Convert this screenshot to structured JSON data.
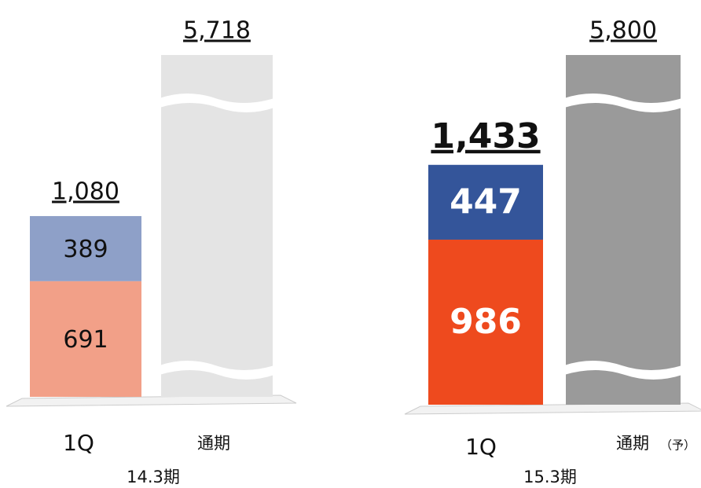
{
  "chart_data": [
    {
      "type": "bar",
      "period": "14.3期",
      "categories": [
        "1Q",
        "通期"
      ],
      "series": [
        {
          "color": "#f2a088",
          "values": [
            691,
            null
          ]
        },
        {
          "color": "#8ea0c8",
          "values": [
            389,
            null
          ]
        }
      ],
      "totals": [
        1080,
        5718
      ],
      "total_labels": [
        "1,080",
        "5,718"
      ],
      "total_color": "#e4e4e4"
    },
    {
      "type": "bar",
      "period": "15.3期",
      "categories": [
        "1Q",
        "通期"
      ],
      "category_note": "（予）",
      "series": [
        {
          "color": "#ee4a1e",
          "values": [
            986,
            null
          ]
        },
        {
          "color": "#34559a",
          "values": [
            447,
            null
          ]
        }
      ],
      "totals": [
        1433,
        5800
      ],
      "total_labels": [
        "1,433",
        "5,800"
      ],
      "total_color": "#9a9a9a"
    }
  ]
}
